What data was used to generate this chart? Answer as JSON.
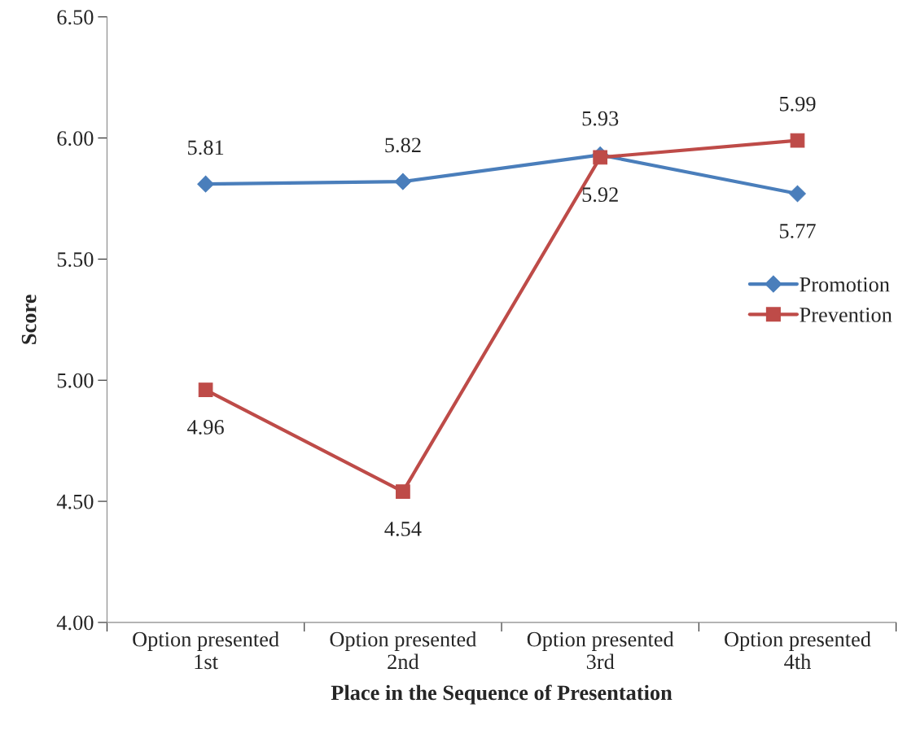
{
  "chart_data": {
    "type": "line",
    "xlabel": "Place in the Sequence of Presentation",
    "ylabel": "Score",
    "categories": [
      "Option presented\n1st",
      "Option presented\n2nd",
      "Option presented\n3rd",
      "Option presented\n4th"
    ],
    "series": [
      {
        "name": "Promotion",
        "color": "#4a7ebb",
        "marker": "diamond",
        "values": [
          5.81,
          5.82,
          5.93,
          5.77
        ]
      },
      {
        "name": "Prevention",
        "color": "#be4b48",
        "marker": "square",
        "values": [
          4.96,
          4.54,
          5.92,
          5.99
        ]
      }
    ],
    "ylim": [
      4.0,
      6.5
    ],
    "yticks": [
      {
        "value": 4.0,
        "label": "4.00"
      },
      {
        "value": 4.5,
        "label": "4.50"
      },
      {
        "value": 5.0,
        "label": "5.00"
      },
      {
        "value": 5.5,
        "label": "5.50"
      },
      {
        "value": 6.0,
        "label": "6.00"
      },
      {
        "value": 6.5,
        "label": "6.50"
      }
    ],
    "data_labels": true,
    "grid": false,
    "legend": "right",
    "line_style": "solid"
  }
}
